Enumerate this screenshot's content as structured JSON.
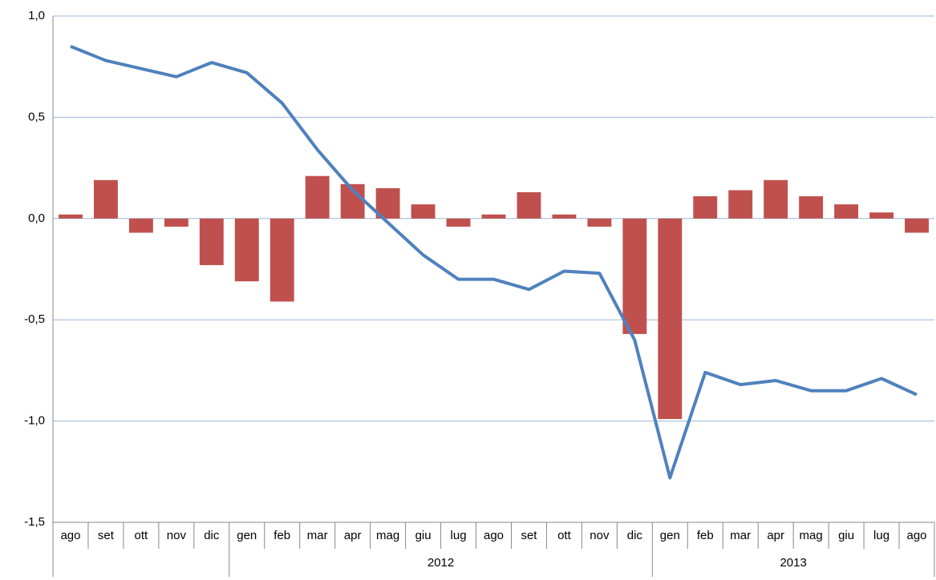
{
  "chart_data": {
    "type": "bar",
    "categories": [
      "ago",
      "set",
      "ott",
      "nov",
      "dic",
      "gen",
      "feb",
      "mar",
      "apr",
      "mag",
      "giu",
      "lug",
      "ago",
      "set",
      "ott",
      "nov",
      "dic",
      "gen",
      "feb",
      "mar",
      "apr",
      "mag",
      "giu",
      "lug",
      "ago"
    ],
    "groups": [
      {
        "label": "2012",
        "span": [
          5,
          16
        ]
      },
      {
        "label": "2013",
        "span": [
          17,
          24
        ]
      }
    ],
    "series": [
      {
        "type": "bar",
        "color": "#c0504d",
        "values": [
          0.02,
          0.19,
          -0.07,
          -0.04,
          -0.23,
          -0.31,
          -0.41,
          0.21,
          0.17,
          0.15,
          0.07,
          -0.04,
          0.02,
          0.13,
          0.02,
          -0.04,
          -0.57,
          -0.99,
          0.11,
          0.14,
          0.19,
          0.11,
          0.07,
          0.03,
          -0.07
        ]
      },
      {
        "type": "line",
        "color": "#4f81bd",
        "values": [
          0.85,
          0.78,
          0.74,
          0.7,
          0.77,
          0.72,
          0.57,
          0.34,
          0.14,
          -0.02,
          -0.18,
          -0.3,
          -0.3,
          -0.35,
          -0.26,
          -0.27,
          -0.6,
          -1.28,
          -0.76,
          -0.82,
          -0.8,
          -0.85,
          -0.85,
          -0.79,
          -0.87
        ]
      }
    ],
    "ylim": [
      -1.5,
      1.0
    ],
    "yticks": [
      {
        "value": -1.5,
        "label": "-1,5"
      },
      {
        "value": -1.0,
        "label": "-1,0"
      },
      {
        "value": -0.5,
        "label": "-0,5"
      },
      {
        "value": 0,
        "label": "0,0"
      },
      {
        "value": 0.5,
        "label": "0,5"
      },
      {
        "value": 1.0,
        "label": "1,0"
      }
    ],
    "grid": true
  }
}
